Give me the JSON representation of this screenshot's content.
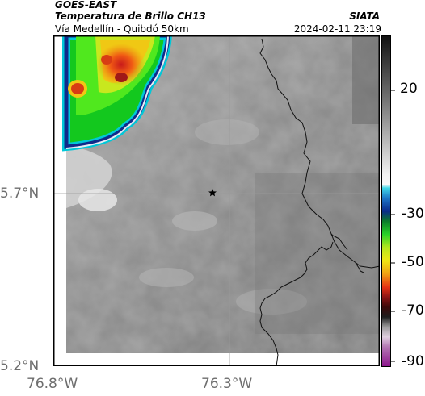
{
  "header": {
    "satellite": "GOES-EAST",
    "product": "Temperatura de Brillo CH13",
    "region": "Vía Medellín - Quibdó 50km",
    "org": "SIATA",
    "timestamp": "2024-02-11 23:19"
  },
  "axes": {
    "lat_labels": [
      "5.7°N",
      "5.2°N"
    ],
    "lon_labels": [
      "76.8°W",
      "76.3°W"
    ]
  },
  "colorbar": {
    "tick_labels": [
      "20",
      "-30",
      "-50",
      "-70",
      "-90"
    ]
  },
  "colors": {
    "frame": "#000000",
    "gridline": "#9a9a9a",
    "border_line": "#111111"
  },
  "marker": {
    "icon": "star-icon"
  }
}
